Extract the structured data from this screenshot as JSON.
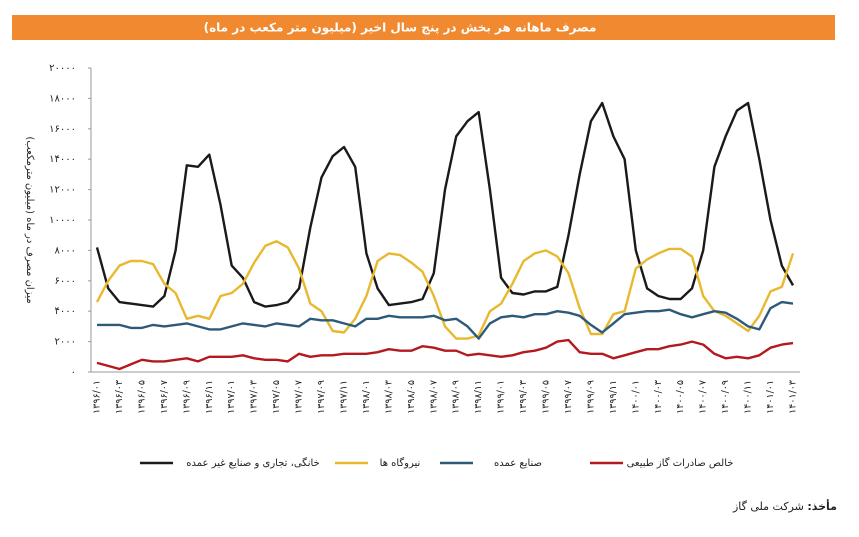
{
  "chart_data": {
    "type": "line",
    "title": "مصرف ماهانه هر بخش در پنج سال اخیر (میلیون متر مکعب در ماه)",
    "y_label": "میزان مصرف در ماه (میلیون مترمکعب)",
    "source_label": "مأخذ:",
    "source": "شرکت ملی گاز",
    "categories": [
      "۱۳۹۶/۰۱",
      null,
      "۱۳۹۶/۰۳",
      null,
      "۱۳۹۶/۰۵",
      null,
      "۱۳۹۶/۰۷",
      null,
      "۱۳۹۶/۰۹",
      null,
      "۱۳۹۶/۱۱",
      null,
      "۱۳۹۷/۰۱",
      null,
      "۱۳۹۷/۰۳",
      null,
      "۱۳۹۷/۰۵",
      null,
      "۱۳۹۷/۰۷",
      null,
      "۱۳۹۷/۰۹",
      null,
      "۱۳۹۷/۱۱",
      null,
      "۱۳۹۸/۰۱",
      null,
      "۱۳۹۸/۰۳",
      null,
      "۱۳۹۸/۰۵",
      null,
      "۱۳۹۸/۰۷",
      null,
      "۱۳۹۸/۰۹",
      null,
      "۱۳۹۸/۱۱",
      null,
      "۱۳۹۹/۰۱",
      null,
      "۱۳۹۹/۰۳",
      null,
      "۱۳۹۹/۰۵",
      null,
      "۱۳۹۹/۰۷",
      null,
      "۱۳۹۹/۰۹",
      null,
      "۱۳۹۹/۱۱",
      null,
      "۱۴۰۰/۰۱",
      null,
      "۱۴۰۰/۰۳",
      null,
      "۱۴۰۰/۰۵",
      null,
      "۱۴۰۰/۰۷",
      null,
      "۱۴۰۰/۰۹",
      null,
      "۱۴۰۰/۱۱",
      null,
      "۱۴۰۱/۰۱",
      null,
      "۱۴۰۱/۰۳"
    ],
    "series": [
      {
        "name": "خانگی، تجاری و صنایع غیر عمده",
        "color": "#1a1a1a",
        "values": [
          8200,
          5500,
          4600,
          4500,
          4400,
          4300,
          5000,
          8000,
          13600,
          13500,
          14300,
          11000,
          7000,
          6200,
          4600,
          4300,
          4400,
          4600,
          5500,
          9500,
          12800,
          14200,
          14800,
          13500,
          7800,
          5500,
          4400,
          4500,
          4600,
          4800,
          6500,
          12000,
          15500,
          16500,
          17100,
          12000,
          6200,
          5200,
          5100,
          5300,
          5300,
          5600,
          9000,
          13000,
          16500,
          17700,
          15500,
          14000,
          8000,
          5500,
          5000,
          4800,
          4800,
          5500,
          8000,
          13500,
          15500,
          17200,
          17700,
          14000,
          10000,
          7000,
          5700
        ]
      },
      {
        "name": "نیروگاه ها",
        "color": "#e8b92f",
        "values": [
          4600,
          6000,
          7000,
          7300,
          7300,
          7100,
          5800,
          5200,
          3500,
          3700,
          3500,
          5000,
          5200,
          5800,
          7200,
          8300,
          8600,
          8200,
          6800,
          4500,
          4000,
          2700,
          2600,
          3500,
          5000,
          7300,
          7800,
          7700,
          7200,
          6600,
          5000,
          3000,
          2200,
          2200,
          2400,
          4000,
          4500,
          5800,
          7300,
          7800,
          8000,
          7600,
          6500,
          4200,
          2500,
          2500,
          3800,
          4000,
          6800,
          7400,
          7800,
          8100,
          8100,
          7600,
          5000,
          4000,
          3700,
          3200,
          2700,
          3700,
          5300,
          5600,
          7800
        ]
      },
      {
        "name": "صنایع عمده",
        "color": "#2e5a7a",
        "values": [
          3100,
          3100,
          3100,
          2900,
          2900,
          3100,
          3000,
          3100,
          3200,
          3000,
          2800,
          2800,
          3000,
          3200,
          3100,
          3000,
          3200,
          3100,
          3000,
          3500,
          3400,
          3400,
          3200,
          3000,
          3500,
          3500,
          3700,
          3600,
          3600,
          3600,
          3700,
          3400,
          3500,
          3000,
          2200,
          3200,
          3600,
          3700,
          3600,
          3800,
          3800,
          4000,
          3900,
          3700,
          3100,
          2600,
          3200,
          3800,
          3900,
          4000,
          4000,
          4100,
          3800,
          3600,
          3800,
          4000,
          3900,
          3500,
          3000,
          2800,
          4200,
          4600,
          4500
        ]
      },
      {
        "name": "خالص صادرات گاز طبیعی",
        "color": "#b3191f",
        "values": [
          600,
          400,
          200,
          500,
          800,
          700,
          700,
          800,
          900,
          700,
          1000,
          1000,
          1000,
          1100,
          900,
          800,
          800,
          700,
          1200,
          1000,
          1100,
          1100,
          1200,
          1200,
          1200,
          1300,
          1500,
          1400,
          1400,
          1700,
          1600,
          1400,
          1400,
          1100,
          1200,
          1100,
          1000,
          1100,
          1300,
          1400,
          1600,
          2000,
          2100,
          1300,
          1200,
          1200,
          900,
          1100,
          1300,
          1500,
          1500,
          1700,
          1800,
          2000,
          1800,
          1200,
          900,
          1000,
          900,
          1100,
          1600,
          1800,
          1900
        ]
      }
    ],
    "ylim": [
      0,
      20000
    ],
    "yticks": [
      {
        "value": 0,
        "label": "۰"
      },
      {
        "value": 2000,
        "label": "۲۰۰۰"
      },
      {
        "value": 4000,
        "label": "۴۰۰۰"
      },
      {
        "value": 6000,
        "label": "۶۰۰۰"
      },
      {
        "value": 8000,
        "label": "۸۰۰۰"
      },
      {
        "value": 10000,
        "label": "۱۰۰۰۰"
      },
      {
        "value": 12000,
        "label": "۱۲۰۰۰"
      },
      {
        "value": 14000,
        "label": "۱۴۰۰۰"
      },
      {
        "value": 16000,
        "label": "۱۶۰۰۰"
      },
      {
        "value": 18000,
        "label": "۱۸۰۰۰"
      },
      {
        "value": 20000,
        "label": "۲۰۰۰۰"
      }
    ],
    "grid": false,
    "legend": "bottom"
  }
}
